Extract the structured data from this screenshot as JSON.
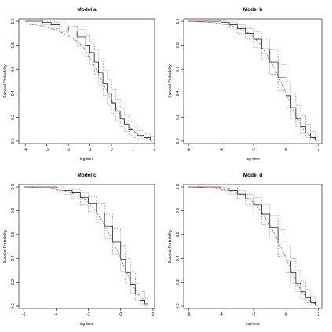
{
  "chart_data": [
    {
      "type": "line",
      "title": "Model a",
      "xlabel": "log-time",
      "ylabel": "Survival Probability",
      "xlim": [
        -4.3,
        2.0
      ],
      "ylim": [
        -0.02,
        1.02
      ],
      "xticks": [
        "-4",
        "-3",
        "-2",
        "-1",
        "0",
        "1",
        "2"
      ],
      "yticks": [
        "0.0",
        "0.2",
        "0.4",
        "0.6",
        "0.8",
        "1.0"
      ],
      "grid": false,
      "series": [
        {
          "style": "step-solid",
          "color": "#000000",
          "x": [
            -4.0,
            -3.2,
            -2.8,
            -2.4,
            -2.0,
            -1.6,
            -1.2,
            -1.0,
            -0.8,
            -0.6,
            -0.4,
            -0.2,
            0.0,
            0.2,
            0.4,
            0.6,
            0.8,
            1.0,
            1.2,
            1.5,
            1.8
          ],
          "y": [
            1.0,
            0.99,
            0.97,
            0.95,
            0.92,
            0.87,
            0.8,
            0.74,
            0.66,
            0.57,
            0.48,
            0.4,
            0.32,
            0.25,
            0.19,
            0.14,
            0.1,
            0.07,
            0.05,
            0.03,
            0.01
          ]
        },
        {
          "style": "step-dotted",
          "color": "#555555",
          "x": [
            -4.0,
            -3.2,
            -2.8,
            -2.4,
            -2.0,
            -1.6,
            -1.2,
            -1.0,
            -0.8,
            -0.6,
            -0.4,
            -0.2,
            0.0,
            0.2,
            0.4,
            0.6,
            0.8,
            1.0,
            1.2,
            1.5,
            1.8
          ],
          "y": [
            1.0,
            1.0,
            0.99,
            0.98,
            0.96,
            0.93,
            0.88,
            0.83,
            0.76,
            0.68,
            0.59,
            0.51,
            0.43,
            0.35,
            0.28,
            0.22,
            0.17,
            0.13,
            0.09,
            0.06,
            0.04
          ]
        },
        {
          "style": "step-dotted",
          "color": "#555555",
          "x": [
            -4.0,
            -3.2,
            -2.8,
            -2.4,
            -2.0,
            -1.6,
            -1.2,
            -1.0,
            -0.8,
            -0.6,
            -0.4,
            -0.2,
            0.0,
            0.2,
            0.4,
            0.6,
            0.8,
            1.0,
            1.2,
            1.5,
            1.8
          ],
          "y": [
            1.0,
            0.97,
            0.94,
            0.91,
            0.86,
            0.8,
            0.71,
            0.64,
            0.56,
            0.47,
            0.38,
            0.3,
            0.23,
            0.17,
            0.12,
            0.08,
            0.05,
            0.03,
            0.02,
            0.01,
            0.0
          ]
        },
        {
          "style": "dashed",
          "color": "#e0302a",
          "x": [
            -4.2,
            -3.5,
            -3.0,
            -2.5,
            -2.0,
            -1.5,
            -1.2,
            -0.9,
            -0.6,
            -0.3,
            0.0,
            0.3,
            0.6,
            0.9,
            1.2,
            1.5,
            1.8
          ],
          "y": [
            0.98,
            0.97,
            0.95,
            0.92,
            0.88,
            0.82,
            0.76,
            0.67,
            0.56,
            0.45,
            0.34,
            0.25,
            0.17,
            0.11,
            0.06,
            0.03,
            0.01
          ]
        }
      ]
    },
    {
      "type": "line",
      "title": "Model b",
      "xlabel": "log-time",
      "ylabel": "Survival Probability",
      "xlim": [
        -6.3,
        2.2
      ],
      "ylim": [
        -0.02,
        1.02
      ],
      "xticks": [
        "-6",
        "-4",
        "-2",
        "0",
        "2"
      ],
      "yticks": [
        "0.0",
        "0.2",
        "0.4",
        "0.6",
        "0.8",
        "1.0"
      ],
      "grid": false,
      "series": [
        {
          "style": "step-solid",
          "color": "#000000",
          "x": [
            -6.0,
            -4.0,
            -3.5,
            -3.0,
            -2.5,
            -2.0,
            -1.5,
            -1.0,
            -0.5,
            0.0,
            0.3,
            0.6,
            0.9,
            1.2,
            1.5,
            1.8
          ],
          "y": [
            1.0,
            0.99,
            0.97,
            0.94,
            0.9,
            0.85,
            0.77,
            0.66,
            0.53,
            0.38,
            0.28,
            0.19,
            0.12,
            0.07,
            0.03,
            0.01
          ]
        },
        {
          "style": "step-dotted",
          "color": "#555555",
          "x": [
            -6.0,
            -4.0,
            -3.5,
            -3.0,
            -2.5,
            -2.0,
            -1.5,
            -1.0,
            -0.5,
            0.0,
            0.3,
            0.6,
            0.9,
            1.2,
            1.5,
            1.8
          ],
          "y": [
            1.0,
            1.0,
            0.99,
            0.97,
            0.94,
            0.91,
            0.85,
            0.76,
            0.64,
            0.5,
            0.4,
            0.3,
            0.21,
            0.14,
            0.08,
            0.04
          ]
        },
        {
          "style": "step-dotted",
          "color": "#555555",
          "x": [
            -6.0,
            -4.0,
            -3.5,
            -3.0,
            -2.5,
            -2.0,
            -1.5,
            -1.0,
            -0.5,
            0.0,
            0.3,
            0.6,
            0.9,
            1.2,
            1.5,
            1.8
          ],
          "y": [
            1.0,
            0.97,
            0.94,
            0.9,
            0.85,
            0.78,
            0.68,
            0.56,
            0.42,
            0.28,
            0.19,
            0.12,
            0.06,
            0.03,
            0.01,
            0.0
          ]
        },
        {
          "style": "dashed",
          "color": "#e0302a",
          "x": [
            -6.0,
            -4.5,
            -3.5,
            -2.5,
            -2.0,
            -1.5,
            -1.0,
            -0.5,
            0.0,
            0.5,
            1.0,
            1.5,
            1.9
          ],
          "y": [
            1.0,
            0.99,
            0.97,
            0.92,
            0.87,
            0.79,
            0.68,
            0.55,
            0.4,
            0.24,
            0.11,
            0.04,
            0.01
          ]
        }
      ]
    },
    {
      "type": "line",
      "title": "Model c",
      "xlabel": "log-time",
      "ylabel": "Survival Probability",
      "xlim": [
        -6.3,
        2.1
      ],
      "ylim": [
        -0.02,
        1.02
      ],
      "xticks": [
        "-6",
        "-4",
        "-2",
        "0",
        "2"
      ],
      "yticks": [
        "0.0",
        "0.2",
        "0.4",
        "0.6",
        "0.8",
        "1.0"
      ],
      "grid": false,
      "series": [
        {
          "style": "step-solid",
          "color": "#000000",
          "x": [
            -6.0,
            -4.0,
            -3.5,
            -3.0,
            -2.5,
            -2.0,
            -1.5,
            -1.0,
            -0.5,
            0.0,
            0.3,
            0.6,
            0.9,
            1.2,
            1.5
          ],
          "y": [
            1.0,
            0.99,
            0.97,
            0.95,
            0.91,
            0.86,
            0.78,
            0.67,
            0.54,
            0.39,
            0.28,
            0.18,
            0.1,
            0.05,
            0.02
          ]
        },
        {
          "style": "step-dotted",
          "color": "#555555",
          "x": [
            -6.0,
            -4.0,
            -3.5,
            -3.0,
            -2.5,
            -2.0,
            -1.5,
            -1.0,
            -0.5,
            0.0,
            0.3,
            0.6,
            0.9,
            1.2,
            1.5
          ],
          "y": [
            1.0,
            1.0,
            0.99,
            0.98,
            0.95,
            0.92,
            0.86,
            0.77,
            0.65,
            0.51,
            0.4,
            0.29,
            0.19,
            0.12,
            0.06
          ]
        },
        {
          "style": "step-dotted",
          "color": "#555555",
          "x": [
            -6.0,
            -4.0,
            -3.5,
            -3.0,
            -2.5,
            -2.0,
            -1.5,
            -1.0,
            -0.5,
            0.0,
            0.3,
            0.6,
            0.9,
            1.2,
            1.5
          ],
          "y": [
            1.0,
            0.97,
            0.94,
            0.9,
            0.85,
            0.79,
            0.69,
            0.57,
            0.43,
            0.29,
            0.19,
            0.11,
            0.05,
            0.02,
            0.0
          ]
        },
        {
          "style": "dashed",
          "color": "#e0302a",
          "x": [
            -6.0,
            -4.5,
            -3.5,
            -2.5,
            -2.0,
            -1.5,
            -1.0,
            -0.5,
            0.0,
            0.5,
            1.0,
            1.5
          ],
          "y": [
            1.0,
            0.99,
            0.97,
            0.92,
            0.87,
            0.79,
            0.68,
            0.55,
            0.4,
            0.24,
            0.11,
            0.04
          ]
        }
      ]
    },
    {
      "type": "line",
      "title": "Model d",
      "xlabel": "log-time",
      "ylabel": "Survival Probability",
      "xlim": [
        -6.3,
        2.2
      ],
      "ylim": [
        -0.02,
        1.02
      ],
      "xticks": [
        "-6",
        "-4",
        "-2",
        "0",
        "2"
      ],
      "yticks": [
        "0.0",
        "0.2",
        "0.4",
        "0.6",
        "0.8",
        "1.0"
      ],
      "grid": false,
      "series": [
        {
          "style": "step-solid",
          "color": "#000000",
          "x": [
            -6.0,
            -4.0,
            -3.5,
            -3.0,
            -2.5,
            -2.0,
            -1.5,
            -1.0,
            -0.5,
            0.0,
            0.3,
            0.6,
            0.9,
            1.2,
            1.5,
            1.8
          ],
          "y": [
            1.0,
            0.99,
            0.97,
            0.94,
            0.9,
            0.85,
            0.77,
            0.66,
            0.53,
            0.38,
            0.28,
            0.19,
            0.12,
            0.07,
            0.03,
            0.01
          ]
        },
        {
          "style": "step-dotted",
          "color": "#555555",
          "x": [
            -6.0,
            -4.0,
            -3.5,
            -3.0,
            -2.5,
            -2.0,
            -1.5,
            -1.0,
            -0.5,
            0.0,
            0.3,
            0.6,
            0.9,
            1.2,
            1.5,
            1.8
          ],
          "y": [
            1.0,
            1.0,
            0.99,
            0.97,
            0.94,
            0.91,
            0.85,
            0.76,
            0.64,
            0.5,
            0.4,
            0.3,
            0.21,
            0.14,
            0.08,
            0.04
          ]
        },
        {
          "style": "step-dotted",
          "color": "#555555",
          "x": [
            -6.0,
            -4.0,
            -3.5,
            -3.0,
            -2.5,
            -2.0,
            -1.5,
            -1.0,
            -0.5,
            0.0,
            0.3,
            0.6,
            0.9,
            1.2,
            1.5,
            1.8
          ],
          "y": [
            1.0,
            0.97,
            0.94,
            0.9,
            0.85,
            0.78,
            0.68,
            0.56,
            0.42,
            0.28,
            0.19,
            0.12,
            0.06,
            0.03,
            0.01,
            0.0
          ]
        },
        {
          "style": "dashed",
          "color": "#e0302a",
          "x": [
            -6.0,
            -4.5,
            -3.5,
            -2.5,
            -2.0,
            -1.5,
            -1.0,
            -0.5,
            0.0,
            0.5,
            1.0,
            1.5,
            1.9
          ],
          "y": [
            1.0,
            0.99,
            0.97,
            0.92,
            0.87,
            0.79,
            0.68,
            0.55,
            0.4,
            0.24,
            0.11,
            0.04,
            0.01
          ]
        }
      ]
    }
  ]
}
